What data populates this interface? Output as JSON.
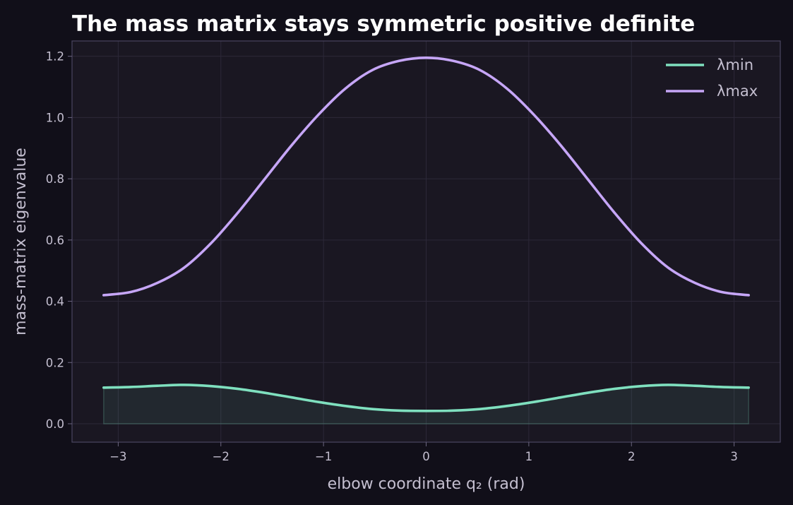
{
  "chart_data": {
    "type": "line",
    "title": "The mass matrix stays symmetric positive definite",
    "xlabel": "elbow coordinate q₂ (rad)",
    "ylabel": "mass-matrix eigenvalue",
    "xlim": [
      -3.45,
      3.45
    ],
    "ylim": [
      -0.06,
      1.25
    ],
    "x_ticks": [
      -3,
      -2,
      -1,
      0,
      1,
      2,
      3
    ],
    "x_tick_labels": [
      "−3",
      "−2",
      "−1",
      "0",
      "1",
      "2",
      "3"
    ],
    "y_ticks": [
      0.0,
      0.2,
      0.4,
      0.6,
      0.8,
      1.0,
      1.2
    ],
    "y_tick_labels": [
      "0.0",
      "0.2",
      "0.4",
      "0.6",
      "0.8",
      "1.0",
      "1.2"
    ],
    "grid": true,
    "legend_position": "top-right",
    "x": [
      -3.1416,
      -2.8798,
      -2.618,
      -2.3562,
      -2.0944,
      -1.8326,
      -1.5708,
      -1.309,
      -1.0472,
      -0.7854,
      -0.5236,
      -0.2618,
      0.0,
      0.2618,
      0.5236,
      0.7854,
      1.0472,
      1.309,
      1.5708,
      1.8326,
      2.0944,
      2.3562,
      2.618,
      2.8798,
      3.1416
    ],
    "series": [
      {
        "name": "λmin",
        "color": "#7fe0bf",
        "fill_to_zero": true,
        "values": [
          0.118,
          0.12,
          0.124,
          0.127,
          0.123,
          0.114,
          0.101,
          0.086,
          0.071,
          0.058,
          0.048,
          0.043,
          0.042,
          0.043,
          0.048,
          0.058,
          0.071,
          0.086,
          0.101,
          0.114,
          0.123,
          0.127,
          0.124,
          0.12,
          0.118
        ]
      },
      {
        "name": "λmax",
        "color": "#c6a6f7",
        "values": [
          0.42,
          0.43,
          0.46,
          0.51,
          0.59,
          0.69,
          0.8,
          0.91,
          1.01,
          1.095,
          1.155,
          1.185,
          1.195,
          1.185,
          1.155,
          1.095,
          1.01,
          0.91,
          0.8,
          0.69,
          0.59,
          0.51,
          0.46,
          0.43,
          0.42
        ]
      }
    ]
  }
}
